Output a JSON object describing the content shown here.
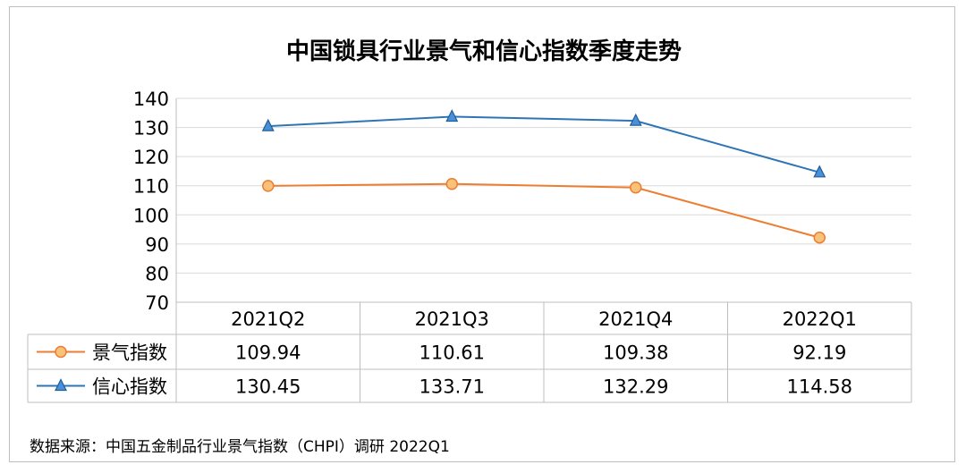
{
  "chart_data": {
    "type": "line",
    "title": "中国锁具行业景气和信心指数季度走势",
    "categories": [
      "2021Q2",
      "2021Q3",
      "2021Q4",
      "2022Q1"
    ],
    "ylim": [
      70,
      140
    ],
    "yticks": [
      140,
      130,
      120,
      110,
      100,
      90,
      80,
      70
    ],
    "grid": true,
    "legend": "data-table",
    "series": [
      {
        "name": "景气指数",
        "values": [
          109.94,
          110.61,
          109.38,
          92.19
        ],
        "color": "#ed7d31",
        "marker": "circle"
      },
      {
        "name": "信心指数",
        "values": [
          130.45,
          133.71,
          132.29,
          114.58
        ],
        "color": "#2e75b6",
        "marker": "triangle"
      }
    ],
    "table_values": [
      [
        "109.94",
        "110.61",
        "109.38",
        "92.19"
      ],
      [
        "130.45",
        "133.71",
        "132.29",
        "114.58"
      ]
    ]
  },
  "source": "数据来源：中国五金制品行业景气指数（CHPI）调研 2022Q1"
}
